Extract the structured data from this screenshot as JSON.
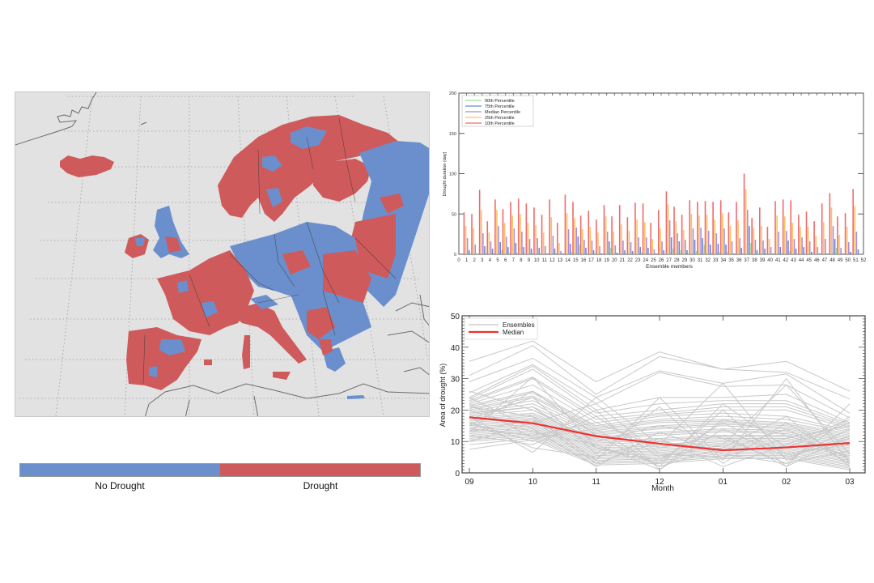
{
  "map": {
    "colors": {
      "no_drought": "#6a8fcc",
      "drought": "#cf5a5c",
      "background": "#e2e2e2"
    },
    "legend": {
      "no_drought_label": "No Drought",
      "drought_label": "Drought"
    }
  },
  "chart_data": [
    {
      "type": "bar",
      "title": "",
      "xlabel": "Ensemble members",
      "ylabel": "Drought duration (day)",
      "ylim": [
        0,
        200
      ],
      "yticks": [
        0,
        50,
        100,
        150,
        200
      ],
      "xticks": [
        0,
        1,
        2,
        3,
        4,
        5,
        6,
        7,
        8,
        9,
        10,
        11,
        12,
        13,
        14,
        15,
        16,
        17,
        18,
        19,
        20,
        21,
        22,
        23,
        24,
        25,
        26,
        27,
        28,
        29,
        30,
        31,
        32,
        33,
        34,
        35,
        36,
        37,
        38,
        39,
        40,
        41,
        42,
        43,
        44,
        45,
        46,
        47,
        48,
        49,
        50,
        51,
        52
      ],
      "legend_position": "upper-left",
      "categories": [
        1,
        2,
        3,
        4,
        5,
        6,
        7,
        8,
        9,
        10,
        11,
        12,
        13,
        14,
        15,
        16,
        17,
        18,
        19,
        20,
        21,
        22,
        23,
        24,
        25,
        26,
        27,
        28,
        29,
        30,
        31,
        32,
        33,
        34,
        35,
        36,
        37,
        38,
        39,
        40,
        41,
        42,
        43,
        44,
        45,
        46,
        47,
        48,
        49,
        50,
        51
      ],
      "series": [
        {
          "name": "10th Percentile",
          "color": "#f06b6b",
          "values": [
            52,
            50,
            80,
            41,
            68,
            56,
            65,
            69,
            63,
            58,
            49,
            68,
            39,
            74,
            65,
            48,
            54,
            43,
            61,
            47,
            61,
            46,
            64,
            63,
            39,
            55,
            78,
            59,
            49,
            67,
            65,
            66,
            65,
            67,
            52,
            65,
            100,
            45,
            58,
            34,
            66,
            68,
            67,
            49,
            53,
            41,
            63,
            76,
            47,
            51,
            81
          ]
        },
        {
          "name": "25th Percentile",
          "color": "#ffc061",
          "values": [
            35,
            32,
            55,
            27,
            55,
            39,
            48,
            50,
            39,
            36,
            27,
            46,
            14,
            51,
            45,
            31,
            34,
            27,
            47,
            28,
            37,
            29,
            43,
            40,
            19,
            32,
            62,
            41,
            30,
            50,
            48,
            49,
            43,
            51,
            35,
            42,
            81,
            33,
            35,
            19,
            48,
            47,
            39,
            34,
            34,
            23,
            40,
            58,
            24,
            34,
            60
          ]
        },
        {
          "name": "Median Percentile",
          "color": "#a98fd8",
          "values": [
            20,
            12,
            26,
            16,
            35,
            22,
            32,
            28,
            19,
            20,
            10,
            23,
            4,
            31,
            33,
            18,
            17,
            10,
            28,
            11,
            17,
            15,
            21,
            21,
            6,
            16,
            42,
            26,
            18,
            32,
            33,
            29,
            26,
            32,
            16,
            20,
            55,
            18,
            17,
            9,
            28,
            29,
            19,
            21,
            16,
            9,
            19,
            35,
            8,
            15,
            28
          ]
        },
        {
          "name": "75th Percentile",
          "color": "#6f86d6",
          "values": [
            5,
            0,
            10,
            7,
            15,
            9,
            14,
            9,
            7,
            8,
            1,
            7,
            1,
            13,
            22,
            8,
            5,
            1,
            16,
            2,
            5,
            4,
            9,
            8,
            1,
            5,
            21,
            16,
            5,
            18,
            20,
            12,
            13,
            12,
            1,
            8,
            35,
            5,
            7,
            1,
            9,
            17,
            7,
            9,
            3,
            1,
            1,
            19,
            1,
            3,
            6
          ]
        },
        {
          "name": "90th Percentile",
          "color": "#9ee29a",
          "values": [
            1,
            0,
            0,
            0,
            5,
            2,
            2,
            1,
            0,
            1,
            0,
            0,
            0,
            3,
            12,
            1,
            0,
            0,
            8,
            0,
            1,
            1,
            2,
            1,
            0,
            1,
            7,
            5,
            1,
            4,
            12,
            2,
            3,
            3,
            0,
            1,
            14,
            1,
            1,
            0,
            1,
            4,
            1,
            1,
            1,
            0,
            0,
            8,
            0,
            0,
            1
          ]
        }
      ]
    },
    {
      "type": "line",
      "title": "",
      "xlabel": "Month",
      "ylabel": "Area of drought (%)",
      "ylim": [
        0,
        50
      ],
      "yticks": [
        0,
        10,
        20,
        30,
        40,
        50
      ],
      "x": [
        "09",
        "10",
        "11",
        "12",
        "01",
        "02",
        "03"
      ],
      "legend_position": "upper-left",
      "series": [
        {
          "name": "Ensembles",
          "color": "#c8c8c8",
          "values_note": "51 ensemble member lines (approximate)",
          "members": [
            [
              35.5,
              42,
              29,
              38.5,
              33,
              35.5,
              26
            ],
            [
              31,
              40.5,
              25,
              37,
              33,
              32,
              23.5
            ],
            [
              29,
              36.5,
              24,
              32.5,
              28.5,
              31.5,
              19
            ],
            [
              25.5,
              34.5,
              22,
              32,
              27.5,
              28,
              17.5
            ],
            [
              24,
              34,
              20,
              24,
              24,
              25,
              16
            ],
            [
              23.5,
              33,
              19,
              22,
              23,
              23,
              15.5
            ],
            [
              23,
              30.5,
              18,
              20,
              22,
              22,
              15
            ],
            [
              22.5,
              30,
              17,
              19,
              21,
              21,
              14.5
            ],
            [
              22,
              28,
              16,
              18.5,
              20,
              20,
              14
            ],
            [
              21.5,
              26,
              15,
              18,
              19,
              18,
              13.5
            ],
            [
              21,
              25.5,
              14.5,
              17,
              18,
              17,
              13
            ],
            [
              20.5,
              24.5,
              14,
              16.5,
              17,
              16,
              12.5
            ],
            [
              20,
              24,
              13.5,
              16,
              16.5,
              15.5,
              12
            ],
            [
              19.5,
              23,
              13,
              15,
              16,
              15,
              11.5
            ],
            [
              19,
              22,
              12.5,
              14.5,
              15.5,
              14.5,
              11
            ],
            [
              18.5,
              21,
              12,
              14,
              15,
              14,
              10.5
            ],
            [
              18,
              20,
              11.5,
              13,
              14,
              13.5,
              10
            ],
            [
              17.5,
              19,
              11,
              12.5,
              13.5,
              13,
              9.5
            ],
            [
              17,
              18.5,
              10.5,
              12,
              13,
              12.5,
              9
            ],
            [
              16.5,
              18,
              10,
              11,
              12,
              12,
              8.5
            ],
            [
              16,
              17.5,
              9.5,
              10.5,
              11.5,
              11.5,
              8
            ],
            [
              15.5,
              17,
              9,
              10,
              11,
              11,
              7.5
            ],
            [
              15,
              16.5,
              8.5,
              9,
              10.5,
              10.5,
              7
            ],
            [
              14.5,
              16,
              8,
              8.5,
              10,
              10,
              6.5
            ],
            [
              14,
              15.5,
              7.5,
              8,
              9.5,
              9.5,
              6
            ],
            [
              13.5,
              15,
              7,
              7.5,
              9,
              9,
              5.5
            ],
            [
              13,
              14.5,
              6.5,
              7,
              8.5,
              8.5,
              5
            ],
            [
              12.5,
              14,
              6,
              6.5,
              8,
              8,
              4.5
            ],
            [
              12,
              13.5,
              5.5,
              6,
              7.5,
              7.5,
              4
            ],
            [
              11.5,
              13,
              5,
              5.5,
              7,
              7,
              3.5
            ],
            [
              11,
              12.5,
              4.5,
              5,
              6.5,
              6.5,
              3
            ],
            [
              10.5,
              12,
              4,
              4.5,
              6,
              6,
              2.5
            ],
            [
              10,
              11.5,
              3.5,
              4,
              5.5,
              5.5,
              2
            ],
            [
              9,
              11,
              3,
              3.5,
              5,
              5,
              1.5
            ],
            [
              7.5,
              10.5,
              2.5,
              3,
              4.5,
              4.5,
              1
            ],
            [
              18,
              6.5,
              24,
              9,
              28.5,
              4,
              14
            ],
            [
              13,
              30.5,
              8,
              3,
              20,
              2,
              22
            ],
            [
              16,
              10,
              20,
              1,
              17,
              12,
              5
            ],
            [
              21,
              18,
              4,
              24,
              4,
              30,
              3
            ],
            [
              15,
              26,
              12,
              2,
              22,
              8,
              16
            ],
            [
              12,
              9,
              18,
              5,
              9,
              28,
              6
            ],
            [
              24,
              14,
              2,
              13,
              6,
              3,
              18
            ],
            [
              17,
              24,
              6,
              21,
              3,
              16,
              4
            ],
            [
              14,
              12,
              16,
              8,
              12,
              2,
              12
            ],
            [
              19,
              21,
              8,
              4,
              16,
              6,
              9
            ],
            [
              22,
              11,
              14,
              2,
              8,
              18,
              2
            ],
            [
              10,
              16,
              22,
              6,
              5,
              11,
              15
            ],
            [
              26,
              20,
              10,
              15,
              11,
              3,
              7
            ],
            [
              16,
              8,
              5,
              11,
              2,
              9,
              17
            ],
            [
              20,
              13,
              9,
              1,
              14,
              5,
              11
            ],
            [
              13,
              17,
              3,
              10,
              7,
              14,
              3
            ]
          ]
        },
        {
          "name": "Median",
          "color": "#f03030",
          "values": [
            17.7,
            15.8,
            11.7,
            9.3,
            7.2,
            8.1,
            9.5
          ]
        }
      ]
    }
  ]
}
